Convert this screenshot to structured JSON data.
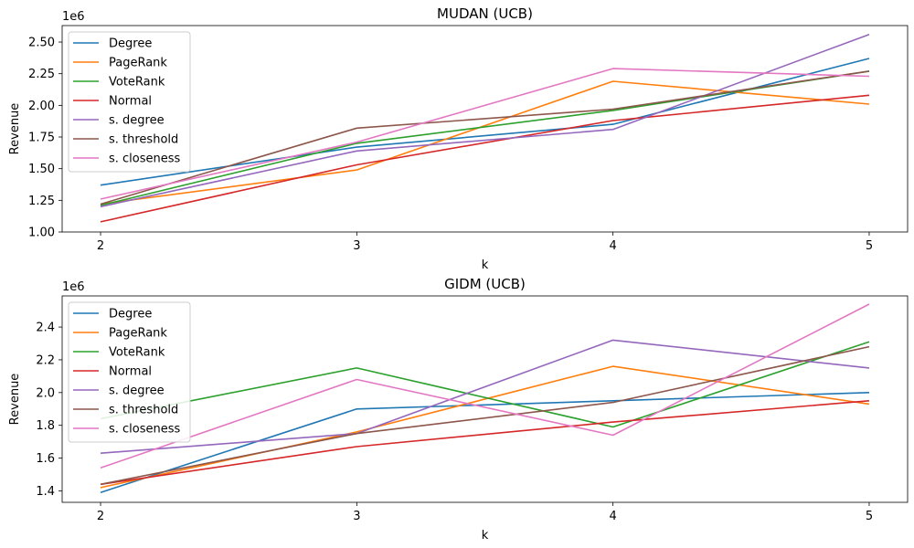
{
  "colors": [
    "#1f77b4",
    "#ff7f0e",
    "#2ca02c",
    "#d62728",
    "#9467bd",
    "#8c564b",
    "#e377c2"
  ],
  "legend_placement": "upper-left",
  "chart_data": [
    {
      "type": "line",
      "title": "MUDAN (UCB)",
      "xlabel": "k",
      "ylabel": "Revenue",
      "y_offset_label": "1e6",
      "x": [
        2,
        3,
        4,
        5
      ],
      "xticks": [
        "2",
        "3",
        "4",
        "5"
      ],
      "xlim": [
        1.85,
        5.15
      ],
      "yticks": [
        "1.00",
        "1.25",
        "1.50",
        "1.75",
        "2.00",
        "2.25",
        "2.50"
      ],
      "ytick_values": [
        1.0,
        1.25,
        1.5,
        1.75,
        2.0,
        2.25,
        2.5
      ],
      "ylim": [
        1.0,
        2.63
      ],
      "grid": false,
      "series": [
        {
          "name": "Degree",
          "values": [
            1.37,
            1.67,
            1.85,
            2.37
          ]
        },
        {
          "name": "PageRank",
          "values": [
            1.22,
            1.49,
            2.19,
            2.01
          ]
        },
        {
          "name": "VoteRank",
          "values": [
            1.21,
            1.7,
            1.96,
            2.27
          ]
        },
        {
          "name": "Normal",
          "values": [
            1.08,
            1.53,
            1.88,
            2.08
          ]
        },
        {
          "name": "s. degree",
          "values": [
            1.2,
            1.64,
            1.81,
            2.56
          ]
        },
        {
          "name": "s. threshold",
          "values": [
            1.22,
            1.82,
            1.97,
            2.27
          ]
        },
        {
          "name": "s. closeness",
          "values": [
            1.26,
            1.71,
            2.29,
            2.23
          ]
        }
      ]
    },
    {
      "type": "line",
      "title": "GIDM (UCB)",
      "xlabel": "k",
      "ylabel": "Revenue",
      "y_offset_label": "1e6",
      "x": [
        2,
        3,
        4,
        5
      ],
      "xticks": [
        "2",
        "3",
        "4",
        "5"
      ],
      "xlim": [
        1.85,
        5.15
      ],
      "yticks": [
        "1.4",
        "1.6",
        "1.8",
        "2.0",
        "2.2",
        "2.4"
      ],
      "ytick_values": [
        1.4,
        1.6,
        1.8,
        2.0,
        2.2,
        2.4
      ],
      "ylim": [
        1.33,
        2.59
      ],
      "grid": false,
      "series": [
        {
          "name": "Degree",
          "values": [
            1.39,
            1.9,
            1.95,
            2.0
          ]
        },
        {
          "name": "PageRank",
          "values": [
            1.42,
            1.76,
            2.16,
            1.93
          ]
        },
        {
          "name": "VoteRank",
          "values": [
            1.84,
            2.15,
            1.79,
            2.31
          ]
        },
        {
          "name": "Normal",
          "values": [
            1.44,
            1.67,
            1.82,
            1.95
          ]
        },
        {
          "name": "s. degree",
          "values": [
            1.63,
            1.75,
            2.32,
            2.15
          ]
        },
        {
          "name": "s. threshold",
          "values": [
            1.44,
            1.75,
            1.94,
            2.28
          ]
        },
        {
          "name": "s. closeness",
          "values": [
            1.54,
            2.08,
            1.74,
            2.54
          ]
        }
      ]
    }
  ]
}
